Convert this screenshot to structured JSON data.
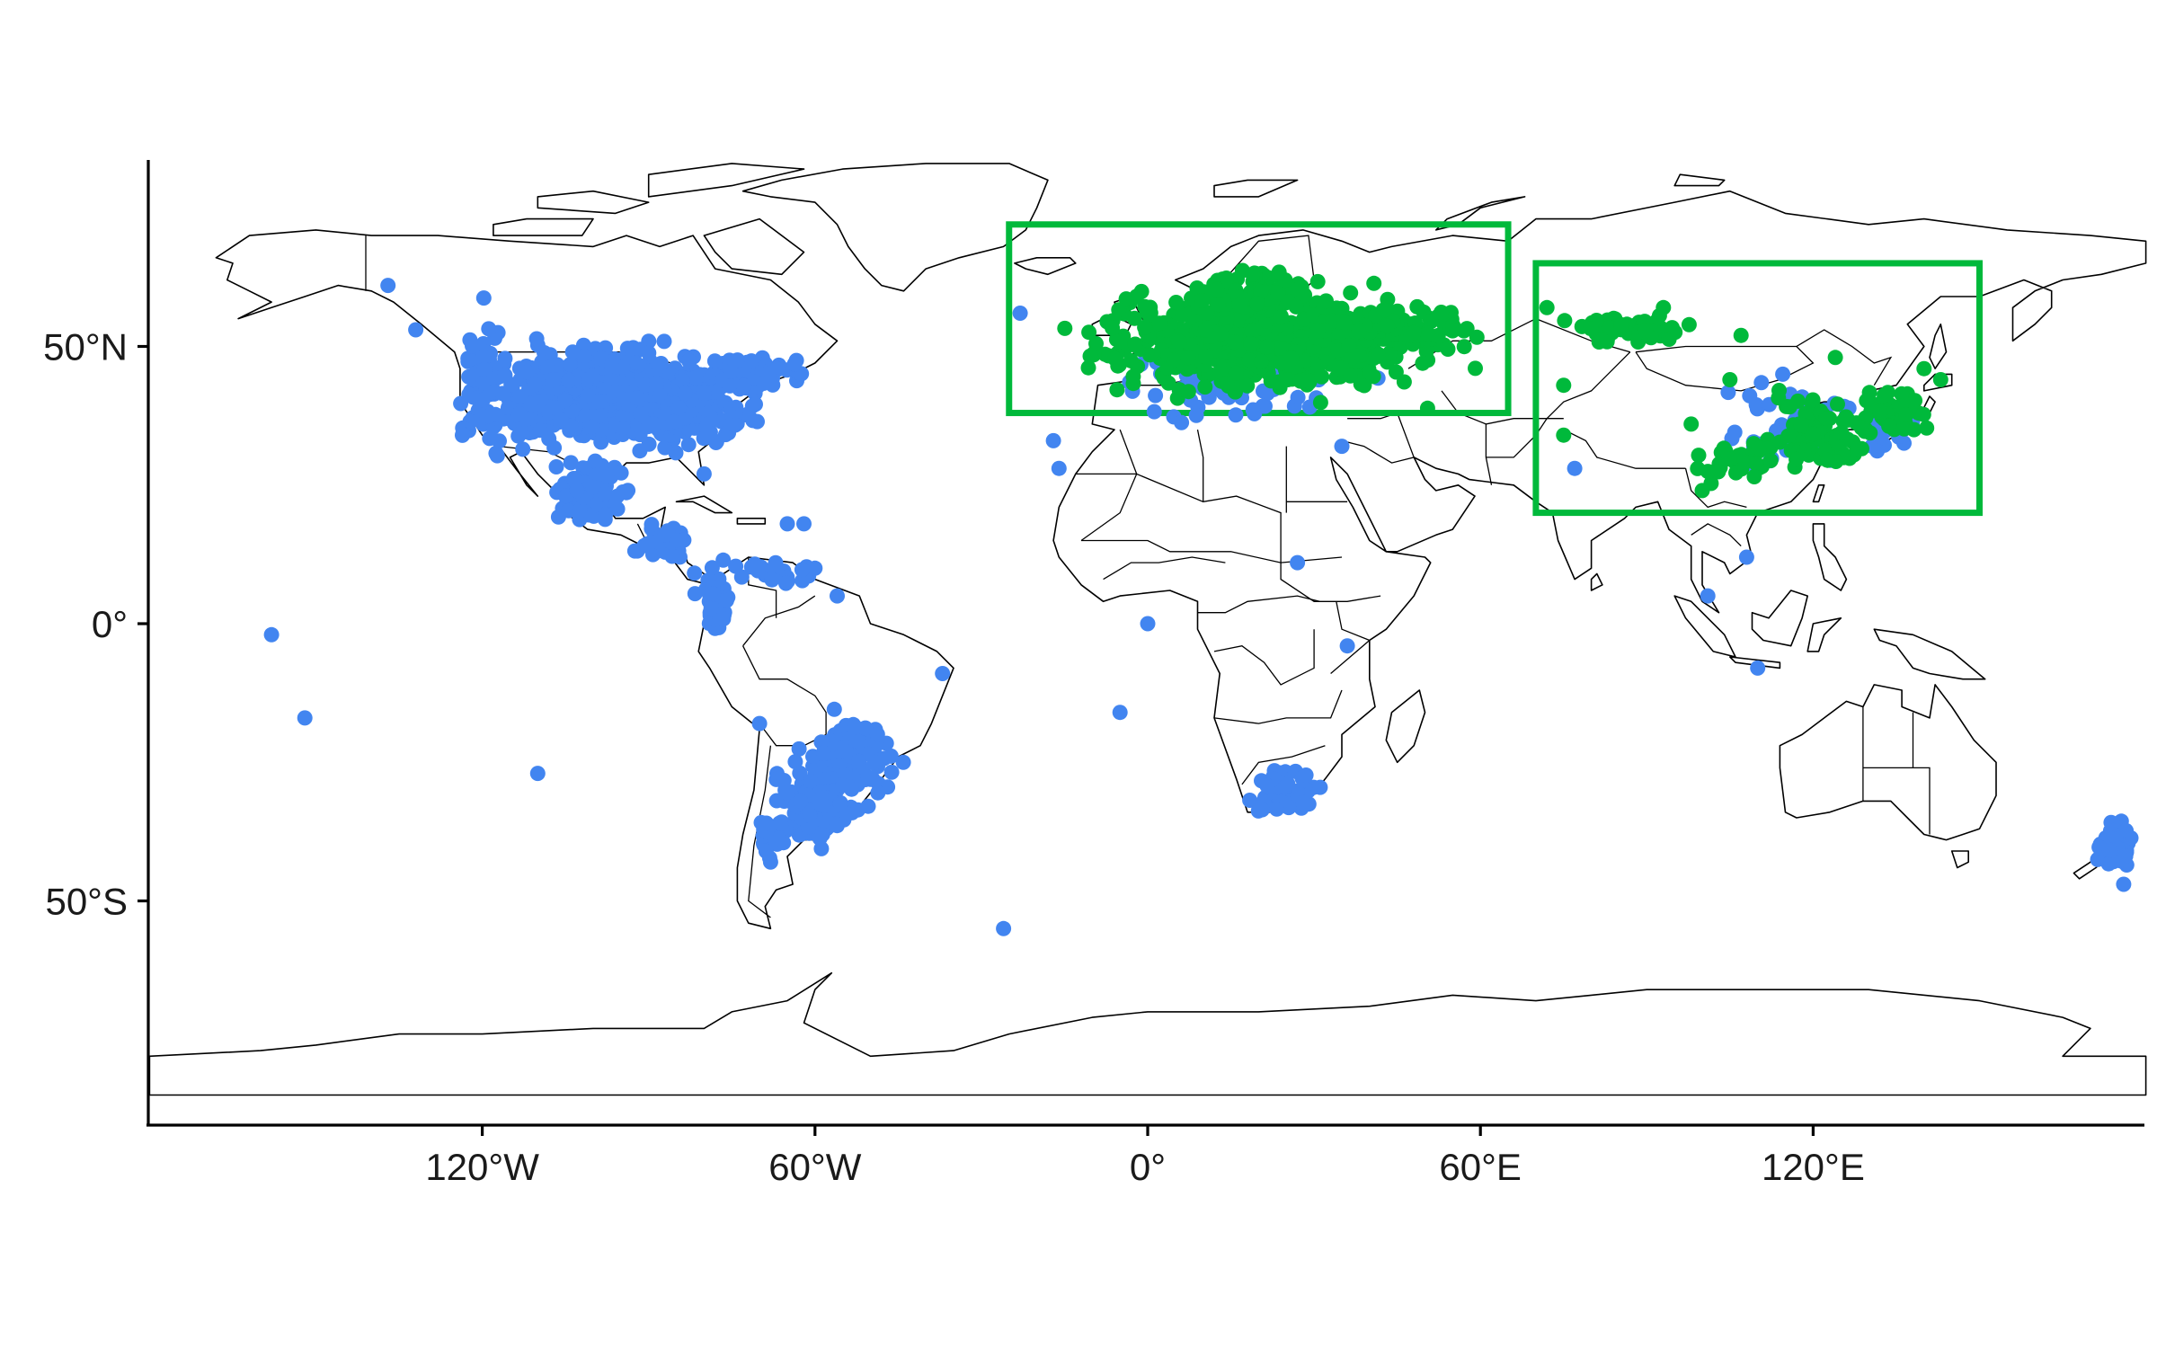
{
  "chart_data": {
    "type": "scatter",
    "title": "",
    "xlabel": "",
    "ylabel": "",
    "xlim": [
      -180,
      180
    ],
    "ylim": [
      -90,
      84
    ],
    "grid": false,
    "colors": {
      "series_a": "#4285f0",
      "series_b": "#00b93b",
      "boxes": "#00b93b",
      "land_outline": "#000000"
    },
    "x_ticks": [
      {
        "value": -120,
        "label": "120°W"
      },
      {
        "value": -60,
        "label": "60°W"
      },
      {
        "value": 0,
        "label": "0°"
      },
      {
        "value": 60,
        "label": "60°E"
      },
      {
        "value": 120,
        "label": "120°E"
      }
    ],
    "y_ticks": [
      {
        "value": 50,
        "label": "50°N"
      },
      {
        "value": 0,
        "label": "0°"
      },
      {
        "value": -50,
        "label": "50°S"
      }
    ],
    "boxes": [
      {
        "lon_min": -25,
        "lon_max": 65,
        "lat_min": 38,
        "lat_max": 72
      },
      {
        "lon_min": 70,
        "lon_max": 150,
        "lat_min": 20,
        "lat_max": 65
      }
    ],
    "clusters": [
      {
        "series": "a",
        "lon": -97,
        "lat": 41,
        "rlon": 18,
        "rlat": 8,
        "n": 420
      },
      {
        "series": "a",
        "lon": -82,
        "lat": 40,
        "rlon": 10,
        "rlat": 7,
        "n": 160
      },
      {
        "series": "a",
        "lon": -70,
        "lat": 45,
        "rlon": 8,
        "rlat": 3,
        "n": 60
      },
      {
        "series": "a",
        "lon": -120,
        "lat": 44,
        "rlon": 4,
        "rlat": 10,
        "n": 90
      },
      {
        "series": "a",
        "lon": -112,
        "lat": 38,
        "rlon": 6,
        "rlat": 6,
        "n": 60
      },
      {
        "series": "a",
        "lon": -100,
        "lat": 24,
        "rlon": 6,
        "rlat": 5,
        "n": 70
      },
      {
        "series": "a",
        "lon": -88,
        "lat": 15,
        "rlon": 5,
        "rlat": 3,
        "n": 30
      },
      {
        "series": "a",
        "lon": -78,
        "lat": 4,
        "rlon": 3,
        "rlat": 6,
        "n": 45
      },
      {
        "series": "a",
        "lon": -68,
        "lat": 9,
        "rlon": 7,
        "rlat": 2,
        "n": 25
      },
      {
        "series": "a",
        "lon": -54,
        "lat": -24,
        "rlon": 7,
        "rlat": 6,
        "n": 120
      },
      {
        "series": "a",
        "lon": -60,
        "lat": -33,
        "rlon": 7,
        "rlat": 6,
        "n": 120
      },
      {
        "series": "a",
        "lon": -68,
        "lat": -38,
        "rlon": 3,
        "rlat": 4,
        "n": 25
      },
      {
        "series": "a",
        "lon": 25,
        "lat": -30,
        "rlon": 6,
        "rlat": 4,
        "n": 55
      },
      {
        "series": "a",
        "lon": 174,
        "lat": -40,
        "rlon": 3,
        "rlat": 4,
        "n": 45
      },
      {
        "series": "a",
        "lon": 15,
        "lat": 44,
        "rlon": 20,
        "rlat": 7,
        "n": 80
      },
      {
        "series": "a",
        "lon": 115,
        "lat": 36,
        "rlon": 10,
        "rlat": 8,
        "n": 45
      },
      {
        "series": "a",
        "lon": 132,
        "lat": 36,
        "rlon": 6,
        "rlat": 5,
        "n": 25
      },
      {
        "series": "b",
        "lon": 20,
        "lat": 51,
        "rlon": 26,
        "rlat": 8,
        "n": 620
      },
      {
        "series": "b",
        "lon": 20,
        "lat": 60,
        "rlon": 10,
        "rlat": 4,
        "n": 80
      },
      {
        "series": "b",
        "lon": 45,
        "lat": 53,
        "rlon": 12,
        "rlat": 4,
        "n": 90
      },
      {
        "series": "b",
        "lon": 87,
        "lat": 53,
        "rlon": 9,
        "rlat": 2,
        "n": 70
      },
      {
        "series": "b",
        "lon": 120,
        "lat": 35,
        "rlon": 8,
        "rlat": 6,
        "n": 80
      },
      {
        "series": "b",
        "lon": 134,
        "lat": 38,
        "rlon": 6,
        "rlat": 4,
        "n": 45
      },
      {
        "series": "b",
        "lon": 106,
        "lat": 29,
        "rlon": 6,
        "rlat": 4,
        "n": 30
      }
    ],
    "points": [
      {
        "series": "a",
        "lon": -137,
        "lat": 61
      },
      {
        "series": "a",
        "lon": -132,
        "lat": 53
      },
      {
        "series": "a",
        "lon": -158,
        "lat": -2
      },
      {
        "series": "a",
        "lon": -152,
        "lat": -17
      },
      {
        "series": "a",
        "lon": -110,
        "lat": -27
      },
      {
        "series": "a",
        "lon": -26,
        "lat": -55
      },
      {
        "series": "a",
        "lon": -5,
        "lat": -16
      },
      {
        "series": "a",
        "lon": 0,
        "lat": 0
      },
      {
        "series": "a",
        "lon": 36,
        "lat": -4
      },
      {
        "series": "a",
        "lon": 27,
        "lat": 11
      },
      {
        "series": "a",
        "lon": -37,
        "lat": -9
      },
      {
        "series": "a",
        "lon": -56,
        "lat": 5
      },
      {
        "series": "a",
        "lon": -16,
        "lat": 28
      },
      {
        "series": "a",
        "lon": -17,
        "lat": 33
      },
      {
        "series": "a",
        "lon": -23,
        "lat": 56
      },
      {
        "series": "a",
        "lon": 101,
        "lat": 5
      },
      {
        "series": "a",
        "lon": 110,
        "lat": -8
      },
      {
        "series": "a",
        "lon": 108,
        "lat": 12
      },
      {
        "series": "a",
        "lon": 176,
        "lat": -47
      },
      {
        "series": "a",
        "lon": 77,
        "lat": 28
      },
      {
        "series": "a",
        "lon": -65,
        "lat": 18
      },
      {
        "series": "a",
        "lon": -62,
        "lat": 18
      },
      {
        "series": "a",
        "lon": -80,
        "lat": 27
      },
      {
        "series": "a",
        "lon": -68,
        "lat": -43
      },
      {
        "series": "a",
        "lon": -70,
        "lat": -18
      },
      {
        "series": "a",
        "lon": -60,
        "lat": 10
      },
      {
        "series": "a",
        "lon": 35,
        "lat": 32
      },
      {
        "series": "b",
        "lon": 72,
        "lat": 57
      },
      {
        "series": "b",
        "lon": 75,
        "lat": 43
      },
      {
        "series": "b",
        "lon": 93,
        "lat": 57
      },
      {
        "series": "b",
        "lon": 107,
        "lat": 52
      },
      {
        "series": "b",
        "lon": 105,
        "lat": 44
      },
      {
        "series": "b",
        "lon": 124,
        "lat": 48
      },
      {
        "series": "b",
        "lon": 140,
        "lat": 46
      },
      {
        "series": "b",
        "lon": 143,
        "lat": 44
      },
      {
        "series": "b",
        "lon": 75,
        "lat": 34
      },
      {
        "series": "b",
        "lon": 98,
        "lat": 36
      },
      {
        "series": "b",
        "lon": 100,
        "lat": 24
      }
    ]
  }
}
